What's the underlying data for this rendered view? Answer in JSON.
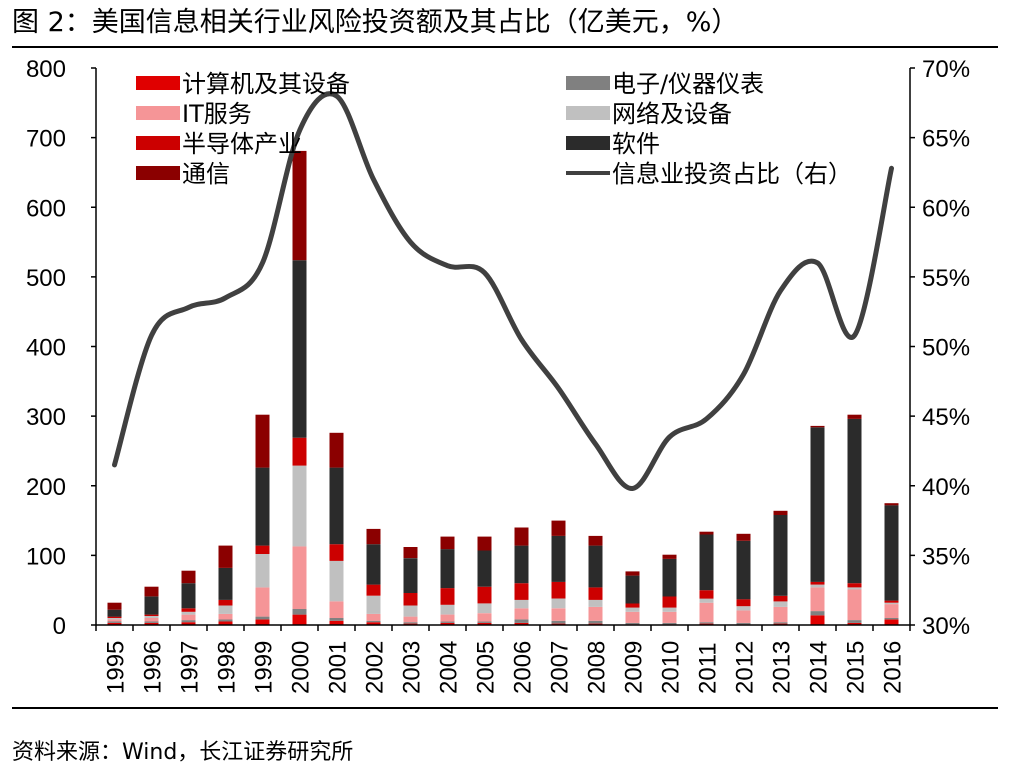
{
  "figure": {
    "title": "图 2：美国信息相关行业风险投资额及其占比（亿美元，%）",
    "source": "资料来源：Wind，长江证券研究所"
  },
  "chart_data": {
    "type": "bar",
    "stacked": true,
    "categories": [
      "1995",
      "1996",
      "1997",
      "1998",
      "1999",
      "2000",
      "2001",
      "2002",
      "2003",
      "2004",
      "2005",
      "2006",
      "2007",
      "2008",
      "2009",
      "2010",
      "2011",
      "2012",
      "2013",
      "2014",
      "2015",
      "2016"
    ],
    "y_left": {
      "range": [
        0,
        800
      ],
      "ticks": [
        0,
        100,
        200,
        300,
        400,
        500,
        600,
        700,
        800
      ],
      "tick_labels": [
        "0",
        "100",
        "200",
        "300",
        "400",
        "500",
        "600",
        "700",
        "800"
      ]
    },
    "y_right": {
      "range": [
        30,
        70
      ],
      "ticks": [
        30,
        35,
        40,
        45,
        50,
        55,
        60,
        65,
        70
      ],
      "tick_labels": [
        "30%",
        "35%",
        "40%",
        "45%",
        "50%",
        "55%",
        "60%",
        "65%",
        "70%"
      ]
    },
    "grid": false,
    "legend_position": "top",
    "series": [
      {
        "name": "计算机及其设备",
        "type": "bar",
        "color": "#e00000",
        "values": [
          3,
          3,
          4,
          5,
          8,
          15,
          6,
          4,
          2,
          3,
          3,
          3,
          2,
          2,
          1,
          1,
          2,
          1,
          2,
          14,
          3,
          8
        ]
      },
      {
        "name": "电子/仪器仪表",
        "type": "bar",
        "color": "#808080",
        "values": [
          2,
          2,
          3,
          3,
          4,
          8,
          4,
          2,
          2,
          2,
          2,
          5,
          4,
          4,
          2,
          2,
          2,
          2,
          2,
          6,
          4,
          2
        ]
      },
      {
        "name": "IT服务",
        "type": "bar",
        "color": "#f59597",
        "values": [
          3,
          5,
          8,
          8,
          42,
          90,
          24,
          10,
          8,
          10,
          12,
          16,
          18,
          20,
          16,
          16,
          28,
          18,
          22,
          34,
          44,
          20
        ]
      },
      {
        "name": "网络及设备",
        "type": "bar",
        "color": "#c0c0c0",
        "values": [
          2,
          3,
          4,
          12,
          48,
          116,
          58,
          26,
          16,
          14,
          14,
          12,
          14,
          10,
          6,
          6,
          6,
          6,
          8,
          4,
          3,
          2
        ]
      },
      {
        "name": "半导体产业",
        "type": "bar",
        "color": "#cc0000",
        "values": [
          2,
          2,
          5,
          8,
          12,
          40,
          24,
          16,
          18,
          24,
          24,
          24,
          24,
          18,
          6,
          16,
          12,
          10,
          8,
          4,
          6,
          3
        ]
      },
      {
        "name": "软件",
        "type": "bar",
        "color": "#2b2b2b",
        "values": [
          10,
          26,
          36,
          46,
          112,
          255,
          110,
          58,
          50,
          56,
          52,
          54,
          66,
          60,
          40,
          54,
          80,
          84,
          116,
          222,
          236,
          137
        ]
      },
      {
        "name": "通信",
        "type": "bar",
        "color": "#8b0000",
        "values": [
          10,
          14,
          18,
          32,
          76,
          157,
          50,
          22,
          16,
          18,
          20,
          26,
          22,
          14,
          6,
          6,
          4,
          10,
          6,
          2,
          6,
          3
        ]
      },
      {
        "name": "信息业投资占比（右）",
        "type": "line",
        "axis": "right",
        "color": "#404040",
        "values": [
          41.5,
          50.8,
          52.8,
          53.5,
          56.0,
          65.5,
          68.0,
          62.0,
          57.5,
          55.8,
          55.3,
          50.5,
          47.0,
          43.0,
          39.8,
          43.5,
          44.8,
          48.0,
          54.0,
          56.0,
          50.8,
          62.8
        ]
      }
    ]
  }
}
